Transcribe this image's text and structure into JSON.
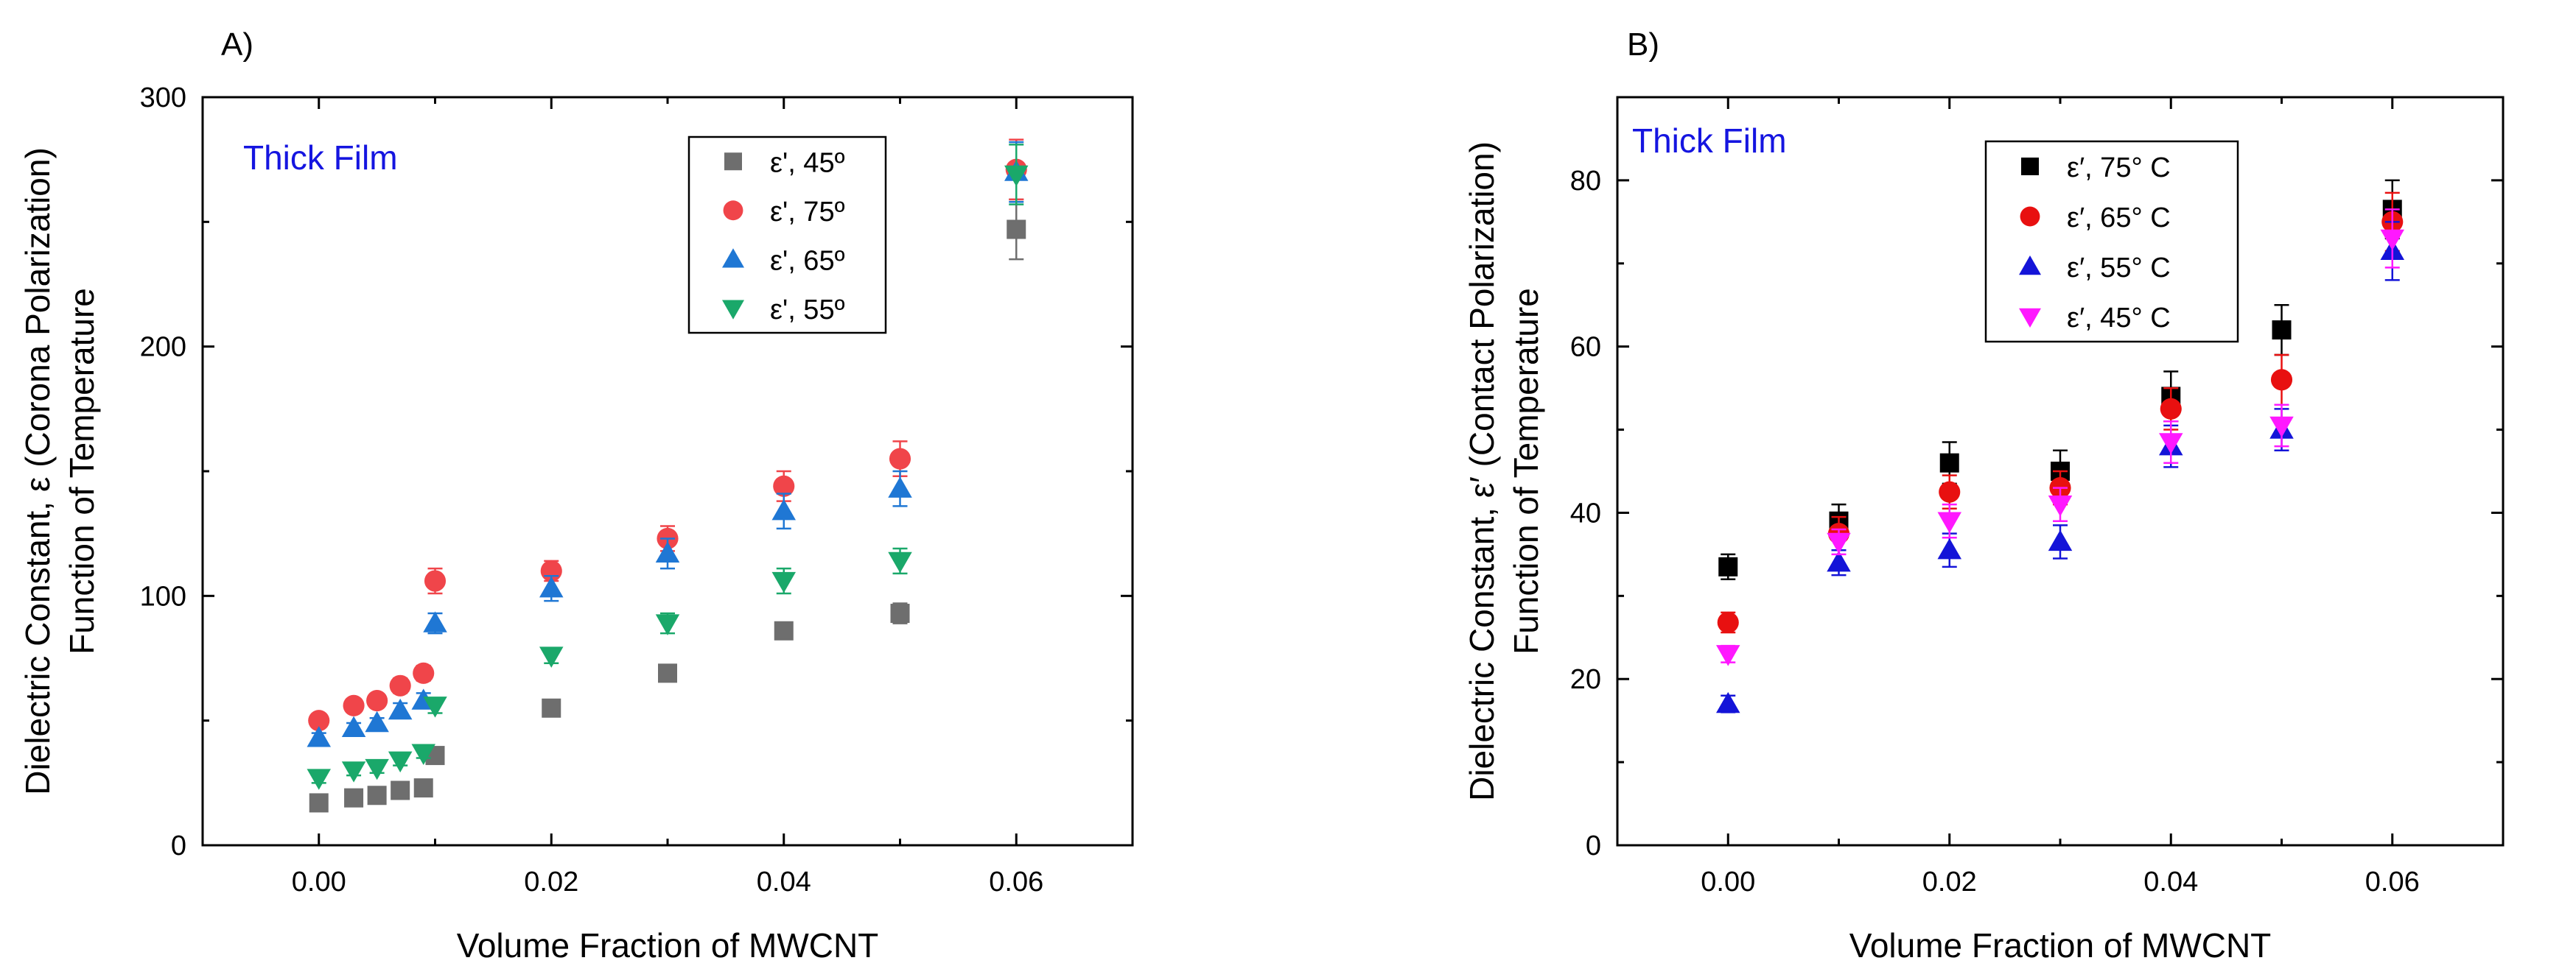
{
  "chart_data": [
    {
      "type": "scatter",
      "panel_label": "A)",
      "annotation": "Thick Film",
      "ylabel_line1": "Dielectric Constant, ε (Corona Polarization)",
      "ylabel_line2": "Function of Temperature",
      "xlabel": "Volume Fraction of MWCNT",
      "xlim": [
        -0.01,
        0.07
      ],
      "ylim": [
        0,
        300
      ],
      "xticks": [
        0.0,
        0.02,
        0.04,
        0.06
      ],
      "xtick_labels": [
        "0.00",
        "0.02",
        "0.04",
        "0.06"
      ],
      "yticks": [
        0,
        100,
        200,
        300
      ],
      "ytick_labels": [
        "0",
        "100",
        "200",
        "300"
      ],
      "legend_position": "top-right",
      "series": [
        {
          "name": "ε', 45º",
          "marker": "square",
          "color": "#6e6e6e",
          "x": [
            0.0,
            0.003,
            0.005,
            0.007,
            0.009,
            0.01,
            0.02,
            0.03,
            0.04,
            0.05,
            0.06
          ],
          "y": [
            17,
            19,
            20,
            22,
            23,
            36,
            55,
            69,
            86,
            93,
            247
          ],
          "err": [
            2,
            2,
            2,
            2,
            2,
            2,
            2,
            2,
            3,
            4,
            12
          ]
        },
        {
          "name": "ε', 75º",
          "marker": "circle",
          "color": "#f0454a",
          "x": [
            0.0,
            0.003,
            0.005,
            0.007,
            0.009,
            0.01,
            0.02,
            0.03,
            0.04,
            0.05,
            0.06
          ],
          "y": [
            50,
            56,
            58,
            64,
            69,
            106,
            110,
            123,
            144,
            155,
            271
          ],
          "err": [
            2,
            2,
            2,
            3,
            3,
            5,
            4,
            5,
            6,
            7,
            12
          ]
        },
        {
          "name": "ε', 65º",
          "marker": "triangle-up",
          "color": "#1f77d4",
          "x": [
            0.0,
            0.003,
            0.005,
            0.007,
            0.009,
            0.01,
            0.02,
            0.03,
            0.04,
            0.05,
            0.06
          ],
          "y": [
            43,
            47,
            49,
            54,
            58,
            89,
            103,
            117,
            134,
            143,
            270
          ],
          "err": [
            2,
            2,
            2,
            3,
            3,
            4,
            5,
            6,
            7,
            7,
            12
          ]
        },
        {
          "name": "ε', 55º",
          "marker": "triangle-down",
          "color": "#1aa86a",
          "x": [
            0.0,
            0.003,
            0.005,
            0.007,
            0.009,
            0.01,
            0.02,
            0.03,
            0.04,
            0.05,
            0.06
          ],
          "y": [
            27,
            30,
            31,
            34,
            37,
            56,
            76,
            89,
            106,
            114,
            269
          ],
          "err": [
            2,
            2,
            2,
            2,
            2,
            3,
            3,
            4,
            5,
            5,
            12
          ]
        }
      ]
    },
    {
      "type": "scatter",
      "panel_label": "B)",
      "annotation": "Thick Film",
      "ylabel_line1": "Dielectric Constant, ε′ (Contact Polarization)",
      "ylabel_line2": "Function of Temperature",
      "xlabel": "Volume Fraction of MWCNT",
      "xlim": [
        -0.01,
        0.07
      ],
      "ylim": [
        0,
        90
      ],
      "xticks": [
        0.0,
        0.02,
        0.04,
        0.06
      ],
      "xtick_labels": [
        "0.00",
        "0.02",
        "0.04",
        "0.06"
      ],
      "yticks": [
        0,
        20,
        40,
        60,
        80
      ],
      "ytick_labels": [
        "0",
        "20",
        "40",
        "60",
        "80"
      ],
      "legend_position": "top-right",
      "series": [
        {
          "name": "ε′, 75° C",
          "marker": "square",
          "color": "#000000",
          "x": [
            0.0,
            0.01,
            0.02,
            0.03,
            0.04,
            0.05,
            0.06
          ],
          "y": [
            33.5,
            39,
            46,
            45,
            54,
            62,
            76.5
          ],
          "err": [
            1.5,
            2,
            2.5,
            2.5,
            3,
            3,
            3.5
          ]
        },
        {
          "name": "ε′, 65° C",
          "marker": "circle",
          "color": "#e81010",
          "x": [
            0.0,
            0.01,
            0.02,
            0.03,
            0.04,
            0.05,
            0.06
          ],
          "y": [
            26.8,
            37.5,
            42.5,
            43,
            52.5,
            56,
            75
          ],
          "err": [
            1.2,
            2,
            2,
            2,
            2.5,
            3,
            3.5
          ]
        },
        {
          "name": "ε′, 55° C",
          "marker": "triangle-up",
          "color": "#1414d8",
          "x": [
            0.0,
            0.01,
            0.02,
            0.03,
            0.04,
            0.05,
            0.06
          ],
          "y": [
            17,
            34,
            35.5,
            36.5,
            48,
            50,
            71.5
          ],
          "err": [
            1,
            1.5,
            2,
            2,
            2.5,
            2.5,
            3.5
          ]
        },
        {
          "name": "ε′, 45° C",
          "marker": "triangle-down",
          "color": "#ff18ff",
          "x": [
            0.0,
            0.01,
            0.02,
            0.03,
            0.04,
            0.05,
            0.06
          ],
          "y": [
            23,
            36.5,
            39,
            41,
            48.5,
            50.5,
            73
          ],
          "err": [
            1,
            1.5,
            2,
            2,
            2.5,
            2.5,
            3.5
          ]
        }
      ]
    }
  ]
}
